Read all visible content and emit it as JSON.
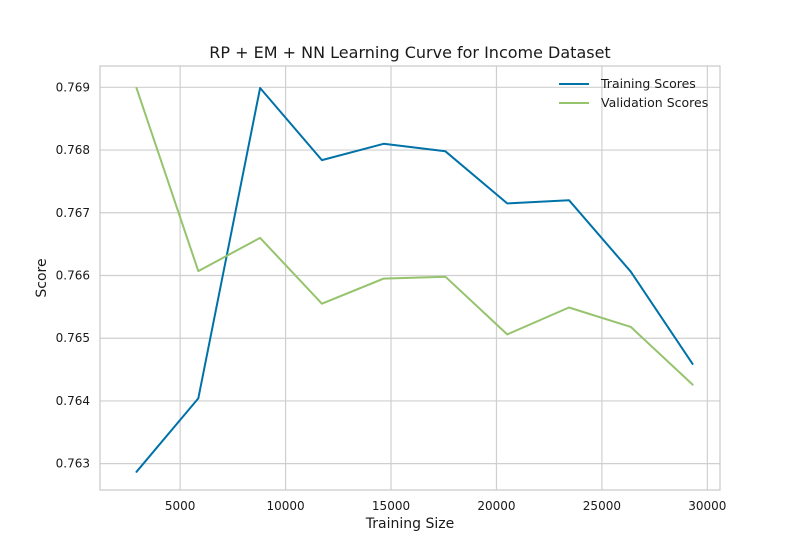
{
  "chart_data": {
    "type": "line",
    "title": "RP + EM + NN Learning Curve for Income Dataset",
    "xlabel": "Training Size",
    "ylabel": "Score",
    "xlim": [
      1200,
      30600
    ],
    "ylim": [
      0.76258,
      0.76934
    ],
    "xticks": [
      5000,
      10000,
      15000,
      20000,
      25000,
      30000
    ],
    "xtick_labels": [
      "5000",
      "10000",
      "15000",
      "20000",
      "25000",
      "30000"
    ],
    "yticks": [
      0.763,
      0.764,
      0.765,
      0.766,
      0.767,
      0.768,
      0.769
    ],
    "ytick_labels": [
      "0.763",
      "0.764",
      "0.765",
      "0.766",
      "0.767",
      "0.768",
      "0.769"
    ],
    "grid": true,
    "legend_position": "top-right",
    "x": [
      2930,
      5860,
      8790,
      11720,
      14650,
      17580,
      20510,
      23440,
      26370,
      29300
    ],
    "series": [
      {
        "name": "Training Scores",
        "color": "#0072a8",
        "values": [
          0.76287,
          0.76404,
          0.76899,
          0.76784,
          0.7681,
          0.76798,
          0.76715,
          0.7672,
          0.76606,
          0.76459
        ]
      },
      {
        "name": "Validation Scores",
        "color": "#96c36e",
        "values": [
          0.76899,
          0.76607,
          0.7666,
          0.76555,
          0.76595,
          0.76598,
          0.76506,
          0.76549,
          0.76518,
          0.76426
        ]
      }
    ]
  }
}
